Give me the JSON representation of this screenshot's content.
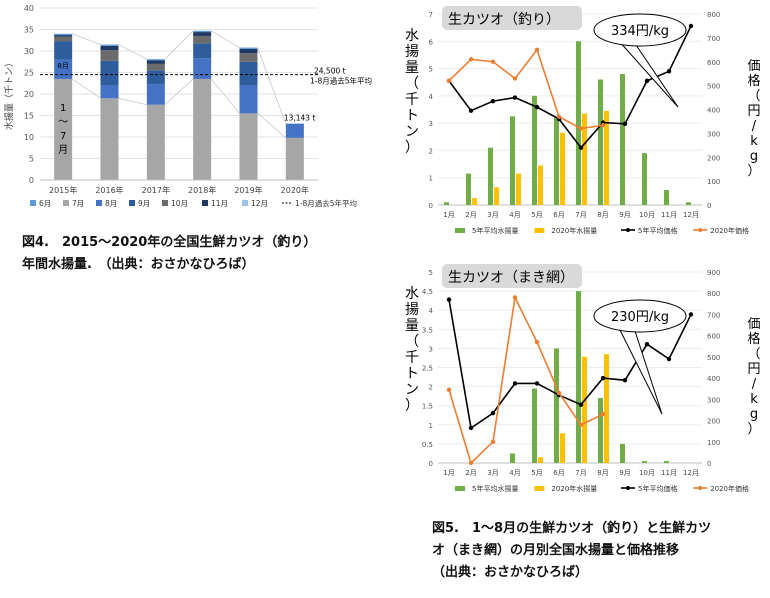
{
  "chart_data": [
    {
      "type": "bar",
      "stacked": true,
      "ylabel": "水揚量（千トン）",
      "ylim": [
        0,
        40
      ],
      "yticks": [
        0,
        5,
        10,
        15,
        20,
        25,
        30,
        35,
        40
      ],
      "categories": [
        "2015年",
        "2016年",
        "2017年",
        "2018年",
        "2019年",
        "2020年"
      ],
      "series": [
        {
          "name": "1～7月",
          "color": "#a6a6a6",
          "values": [
            23.5,
            19.0,
            17.5,
            23.5,
            15.5,
            9.8
          ]
        },
        {
          "name": "8月",
          "color": "#4472c4",
          "values": [
            4.5,
            3.0,
            4.8,
            4.8,
            6.5,
            3.3
          ]
        },
        {
          "name": "9月",
          "color": "#2e5d9e",
          "values": [
            4.3,
            5.7,
            3.2,
            3.5,
            5.5,
            0
          ]
        },
        {
          "name": "10月",
          "color": "#6b6b6b",
          "values": [
            1.0,
            2.5,
            1.5,
            1.7,
            2.0,
            0
          ]
        },
        {
          "name": "11月",
          "color": "#1f3864",
          "values": [
            0.4,
            1.0,
            0.8,
            0.9,
            1.0,
            0
          ]
        },
        {
          "name": "12月",
          "color": "#5b9bd5",
          "values": [
            0.3,
            0.3,
            0.3,
            0.3,
            0.3,
            0
          ]
        }
      ],
      "legend": [
        "6月",
        "7月",
        "8月",
        "9月",
        "10月",
        "11月",
        "12月",
        "1-8月過去5年平均"
      ],
      "legend_colors": [
        "#5b9bd5",
        "#a6a6a6",
        "#4472c4",
        "#2e5d9e",
        "#6b6b6b",
        "#1f3864",
        "#9dc3e6"
      ],
      "reference_line": {
        "value": 24.5,
        "label1": "24,500 t",
        "label2": "1-8月過去5年平均"
      },
      "annotation_2020": "13,143 t",
      "bar_labels": {
        "months_1_7": "1～7月",
        "month_8": "8月"
      },
      "caption": [
        "図4.　2015～2020年の全国生鮮カツオ（釣り）",
        "年間水揚量.　（出典：おさかなひろば）"
      ]
    },
    {
      "type": "bar+line",
      "title": "生カツオ（釣り）",
      "callout": "334円/kg",
      "ylabel_left": "水揚量（千トン）",
      "ylabel_right": "価格（円/kg）",
      "ylim_left": [
        0,
        7
      ],
      "ylim_right": [
        0,
        800
      ],
      "yticks_left": [
        0,
        1,
        2,
        3,
        4,
        5,
        6,
        7
      ],
      "yticks_right": [
        0,
        100,
        200,
        300,
        400,
        500,
        600,
        700,
        800
      ],
      "categories": [
        "1月",
        "2月",
        "3月",
        "4月",
        "5月",
        "6月",
        "7月",
        "8月",
        "9月",
        "10月",
        "11月",
        "12月"
      ],
      "series": [
        {
          "name": "5年平均水揚量",
          "type": "bar",
          "axis": "left",
          "color": "#70ad47",
          "values": [
            0.1,
            1.15,
            2.1,
            3.25,
            4.0,
            3.2,
            6.0,
            4.6,
            4.8,
            1.9,
            0.55,
            0.1
          ]
        },
        {
          "name": "2020年水揚量",
          "type": "bar",
          "axis": "left",
          "color": "#ffc000",
          "values": [
            0,
            0.25,
            0.65,
            1.15,
            1.45,
            2.65,
            3.35,
            3.45,
            null,
            null,
            null,
            null
          ]
        },
        {
          "name": "5年平均価格",
          "type": "line",
          "axis": "right",
          "color": "#000000",
          "values": [
            520,
            395,
            435,
            450,
            410,
            360,
            240,
            345,
            340,
            520,
            560,
            750
          ]
        },
        {
          "name": "2020年価格",
          "type": "line",
          "axis": "right",
          "color": "#ed7d31",
          "values": [
            520,
            610,
            600,
            530,
            650,
            370,
            320,
            334,
            null,
            null,
            null,
            null
          ]
        }
      ]
    },
    {
      "type": "bar+line",
      "title": "生カツオ（まき網）",
      "callout": "230円/kg",
      "ylabel_left": "水揚量（千トン）",
      "ylabel_right": "価格（円/kg）",
      "ylim_left": [
        0,
        5
      ],
      "ylim_right": [
        0,
        900
      ],
      "yticks_left": [
        0,
        0.5,
        1,
        1.5,
        2,
        2.5,
        3,
        3.5,
        4,
        4.5,
        5
      ],
      "yticks_right": [
        0,
        100,
        200,
        300,
        400,
        500,
        600,
        700,
        800,
        900
      ],
      "categories": [
        "1月",
        "2月",
        "3月",
        "4月",
        "5月",
        "6月",
        "7月",
        "8月",
        "9月",
        "10月",
        "11月",
        "12月"
      ],
      "series": [
        {
          "name": "5年平均水揚量",
          "type": "bar",
          "axis": "left",
          "color": "#70ad47",
          "values": [
            0,
            0,
            0,
            0.25,
            1.95,
            3.0,
            4.5,
            1.7,
            0.5,
            0.05,
            0.05,
            0
          ]
        },
        {
          "name": "2020年水揚量",
          "type": "bar",
          "axis": "left",
          "color": "#ffc000",
          "values": [
            0,
            0,
            0,
            0,
            0.15,
            0.78,
            2.78,
            2.85,
            null,
            null,
            null,
            null
          ]
        },
        {
          "name": "5年平均価格",
          "type": "line",
          "axis": "right",
          "color": "#000000",
          "values": [
            770,
            165,
            235,
            375,
            375,
            320,
            275,
            400,
            390,
            560,
            490,
            700
          ]
        },
        {
          "name": "2020年価格",
          "type": "line",
          "axis": "right",
          "color": "#ed7d31",
          "values": [
            345,
            0,
            100,
            780,
            570,
            330,
            180,
            230,
            null,
            null,
            null,
            null
          ]
        }
      ],
      "caption": [
        "図5.　1～8月の生鮮カツオ（釣り）と生鮮カツ",
        "オ（まき網）の月別全国水揚量と価格推移",
        "（出典：おさかなひろば）"
      ]
    }
  ]
}
